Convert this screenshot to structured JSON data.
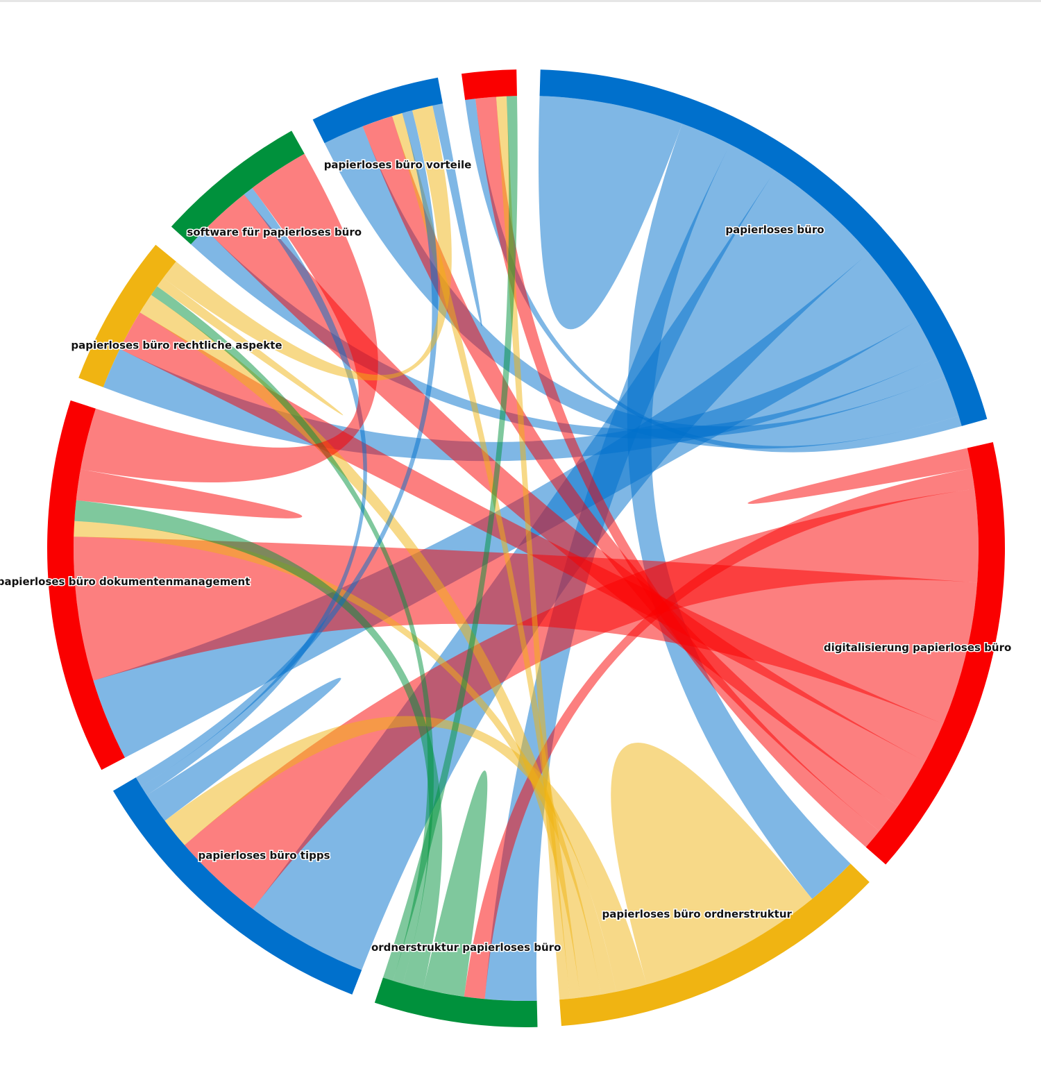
{
  "chart_data": {
    "type": "chord",
    "nodes": [
      {
        "name": "papierloses büro",
        "color": "#0070cc"
      },
      {
        "name": "digitalisierung papierloses büro",
        "color": "#fa0000"
      },
      {
        "name": "papierloses büro ordnerstruktur",
        "color": "#f0b412"
      },
      {
        "name": "ordnerstruktur papierloses büro",
        "color": "#00913c"
      },
      {
        "name": "papierloses büro tipps",
        "color": "#0070cc"
      },
      {
        "name": "papierloses büro dokumentenmanagement",
        "color": "#fa0000"
      },
      {
        "name": "papierloses büro rechtliche aspekte",
        "color": "#f0b412"
      },
      {
        "name": "software für papierloses büro",
        "color": "#00913c"
      },
      {
        "name": "papierloses büro vorteile",
        "color": "#0070cc"
      },
      {
        "name": null,
        "color": "#fa0000"
      }
    ],
    "matrix": [
      [
        14,
        0,
        5,
        5,
        12,
        8,
        4,
        2,
        4,
        1
      ],
      [
        0,
        2,
        0,
        2,
        9,
        14,
        4,
        5,
        3,
        2
      ],
      [
        5,
        0,
        18,
        0,
        3,
        1.5,
        2,
        0,
        1,
        1
      ],
      [
        5,
        2,
        0,
        4,
        0,
        2,
        1,
        0,
        0,
        1
      ],
      [
        12,
        9,
        3,
        0,
        3,
        0,
        0,
        1,
        1,
        0
      ],
      [
        8,
        14,
        1.5,
        2,
        0,
        3,
        0,
        6,
        0,
        0
      ],
      [
        4,
        4,
        2,
        1,
        0,
        0,
        1,
        0,
        2,
        0
      ],
      [
        2,
        5,
        0,
        0,
        1,
        6,
        0,
        0,
        0,
        0
      ],
      [
        4,
        3,
        1,
        0,
        1,
        0,
        2,
        0,
        1,
        0
      ],
      [
        1,
        2,
        1,
        1,
        0,
        0,
        0,
        0,
        0,
        0
      ]
    ]
  }
}
